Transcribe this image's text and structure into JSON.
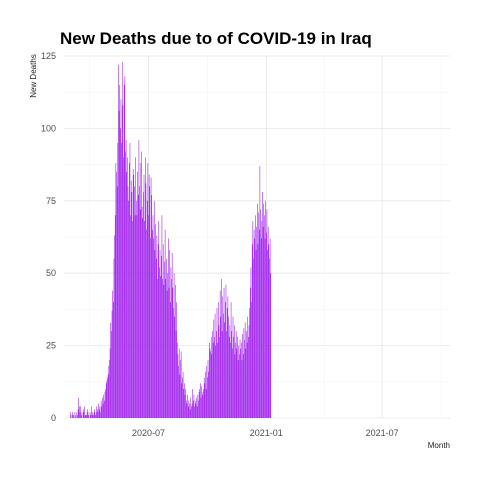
{
  "chart_data": {
    "type": "bar",
    "title": "New Deaths due to of COVID-19 in Iraq",
    "xlabel": "Month",
    "ylabel": "New Deaths",
    "bar_color": "#a020f0",
    "grid": true,
    "legend": "none",
    "xlim": [
      "2020-02-20",
      "2021-10-15"
    ],
    "ylim": [
      0,
      125
    ],
    "x_ticks": [
      {
        "date": "2020-07-01",
        "label": "2020-07"
      },
      {
        "date": "2021-01-01",
        "label": "2021-01"
      },
      {
        "date": "2021-07-01",
        "label": "2021-07"
      }
    ],
    "y_ticks": [
      0,
      25,
      50,
      75,
      100,
      125
    ],
    "series": [
      {
        "x_start": "2020-03-01",
        "interval": "1 day",
        "values": [
          2,
          1,
          0,
          2,
          1,
          1,
          0,
          2,
          1,
          0,
          2,
          1,
          3,
          7,
          4,
          2,
          4,
          1,
          2,
          0,
          3,
          2,
          4,
          1,
          1,
          1,
          2,
          3,
          1,
          2,
          0,
          1,
          2,
          4,
          1,
          2,
          1,
          2,
          3,
          1,
          2,
          4,
          3,
          2,
          5,
          3,
          4,
          2,
          6,
          4,
          7,
          5,
          8,
          6,
          9,
          10,
          12,
          13,
          14,
          15,
          18,
          20,
          24,
          33,
          30,
          37,
          44,
          40,
          55,
          63,
          70,
          88,
          85,
          80,
          95,
          122,
          106,
          115,
          100,
          110,
          95,
          123,
          108,
          90,
          115,
          118,
          92,
          96,
          85,
          90,
          80,
          75,
          88,
          95,
          70,
          82,
          78,
          68,
          86,
          84,
          80,
          70,
          90,
          75,
          70,
          85,
          77,
          96,
          80,
          72,
          88,
          92,
          73,
          69,
          78,
          84,
          68,
          90,
          81,
          65,
          75,
          88,
          70,
          84,
          80,
          62,
          83,
          77,
          65,
          70,
          62,
          75,
          58,
          67,
          55,
          63,
          48,
          60,
          68,
          52,
          58,
          49,
          56,
          70,
          48,
          60,
          46,
          54,
          65,
          48,
          55,
          44,
          50,
          62,
          45,
          58,
          40,
          52,
          48,
          57,
          45,
          38,
          50,
          35,
          46,
          30,
          40,
          26,
          22,
          18,
          24,
          15,
          20,
          23,
          12,
          14,
          16,
          10,
          12,
          8,
          10,
          6,
          5,
          8,
          4,
          6,
          5,
          3,
          7,
          4,
          5,
          10,
          6,
          8,
          4,
          6,
          5,
          7,
          4,
          8,
          6,
          9,
          10,
          12,
          7,
          11,
          8,
          9,
          10,
          14,
          12,
          16,
          10,
          18,
          14,
          20,
          16,
          26,
          24,
          23,
          28,
          22,
          30,
          26,
          34,
          28,
          36,
          25,
          30,
          38,
          26,
          40,
          32,
          28,
          44,
          35,
          48,
          30,
          42,
          36,
          45,
          33,
          40,
          46,
          30,
          38,
          42,
          35,
          28,
          32,
          26,
          40,
          30,
          24,
          35,
          28,
          32,
          22,
          26,
          30,
          24,
          28,
          20,
          25,
          22,
          27,
          24,
          26,
          20,
          29,
          22,
          31,
          27,
          33,
          24,
          30,
          26,
          35,
          28,
          32,
          38,
          45,
          52,
          40,
          60,
          68,
          55,
          65,
          62,
          70,
          58,
          66,
          74,
          60,
          71,
          65,
          87,
          72,
          62,
          68,
          78,
          66,
          74,
          70,
          62,
          75,
          64,
          72,
          58,
          66,
          60,
          55,
          62,
          50
        ]
      }
    ]
  }
}
